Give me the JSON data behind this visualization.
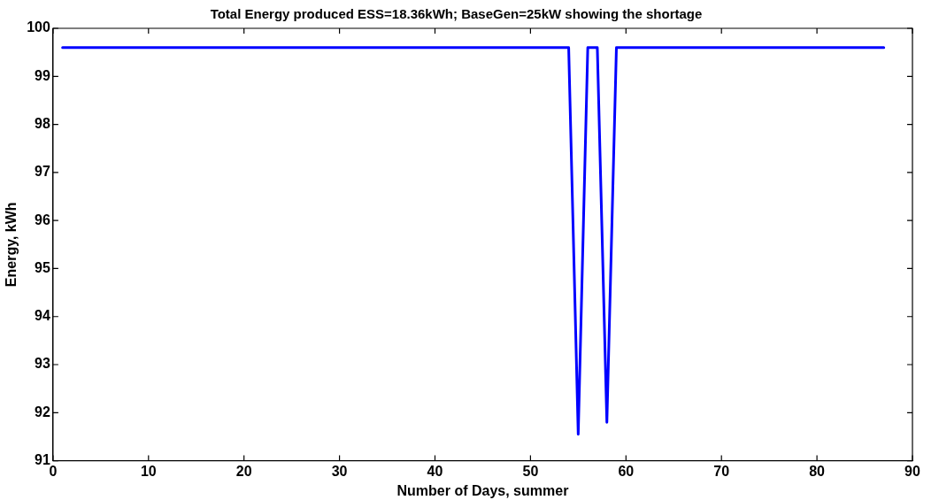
{
  "chart_data": {
    "type": "line",
    "title": "Total Energy produced ESS=18.36kWh; BaseGen=25kW showing the shortage",
    "xlabel": "Number of Days, summer",
    "ylabel": "Energy, kWh",
    "series": [
      {
        "color": "#0000ff",
        "x": [
          1,
          54,
          55,
          56,
          57,
          58,
          59,
          87
        ],
        "values": [
          99.6,
          99.6,
          91.55,
          99.6,
          99.6,
          91.8,
          99.6,
          99.6
        ]
      }
    ],
    "xlim": [
      0,
      90
    ],
    "xticks": [
      0,
      10,
      20,
      30,
      40,
      50,
      60,
      70,
      80,
      90
    ],
    "ylim": [
      91,
      100
    ],
    "yticks": [
      91,
      92,
      93,
      94,
      95,
      96,
      97,
      98,
      99,
      100
    ],
    "grid": false,
    "legend": false,
    "marker": "none",
    "line_style": "solid"
  }
}
